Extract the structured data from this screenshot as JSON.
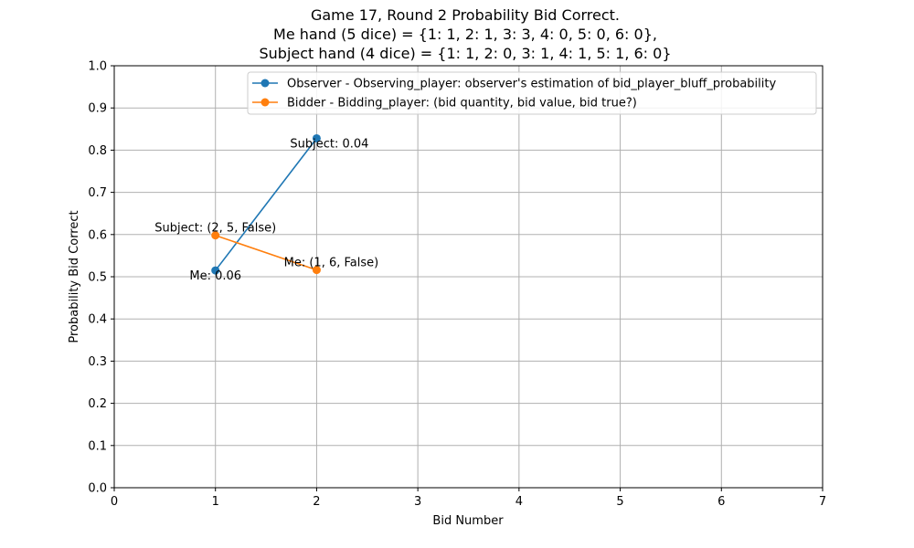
{
  "chart_data": {
    "type": "line",
    "title_lines": [
      "Game 17, Round 2 Probability Bid Correct.",
      "Me hand (5 dice) = {1: 1, 2: 1, 3: 3, 4: 0, 5: 0, 6: 0},",
      "Subject hand (4 dice) = {1: 1, 2: 0, 3: 1, 4: 1, 5: 1, 6: 0}"
    ],
    "xlabel": "Bid Number",
    "ylabel": "Probability Bid Correct",
    "xlim": [
      0,
      7
    ],
    "ylim": [
      0,
      1
    ],
    "xticks": [
      "0",
      "1",
      "2",
      "3",
      "4",
      "5",
      "6",
      "7"
    ],
    "yticks": [
      "0.0",
      "0.1",
      "0.2",
      "0.3",
      "0.4",
      "0.5",
      "0.6",
      "0.7",
      "0.8",
      "0.9",
      "1.0"
    ],
    "grid": true,
    "legend_position": "top-right",
    "series": [
      {
        "name": "Observer - Observing_player: observer's estimation of bid_player_bluff_probability",
        "color": "#1f77b4",
        "x": [
          1,
          2
        ],
        "y": [
          0.515,
          0.828
        ],
        "labels": [
          "Me: 0.06",
          "Subject: 0.04"
        ]
      },
      {
        "name": "Bidder -  Bidding_player: (bid quantity, bid value, bid true?)",
        "color": "#ff7f0e",
        "x": [
          1,
          2
        ],
        "y": [
          0.598,
          0.516
        ],
        "labels": [
          "Subject: (2, 5, False)",
          "Me: (1, 6, False)"
        ]
      }
    ]
  }
}
